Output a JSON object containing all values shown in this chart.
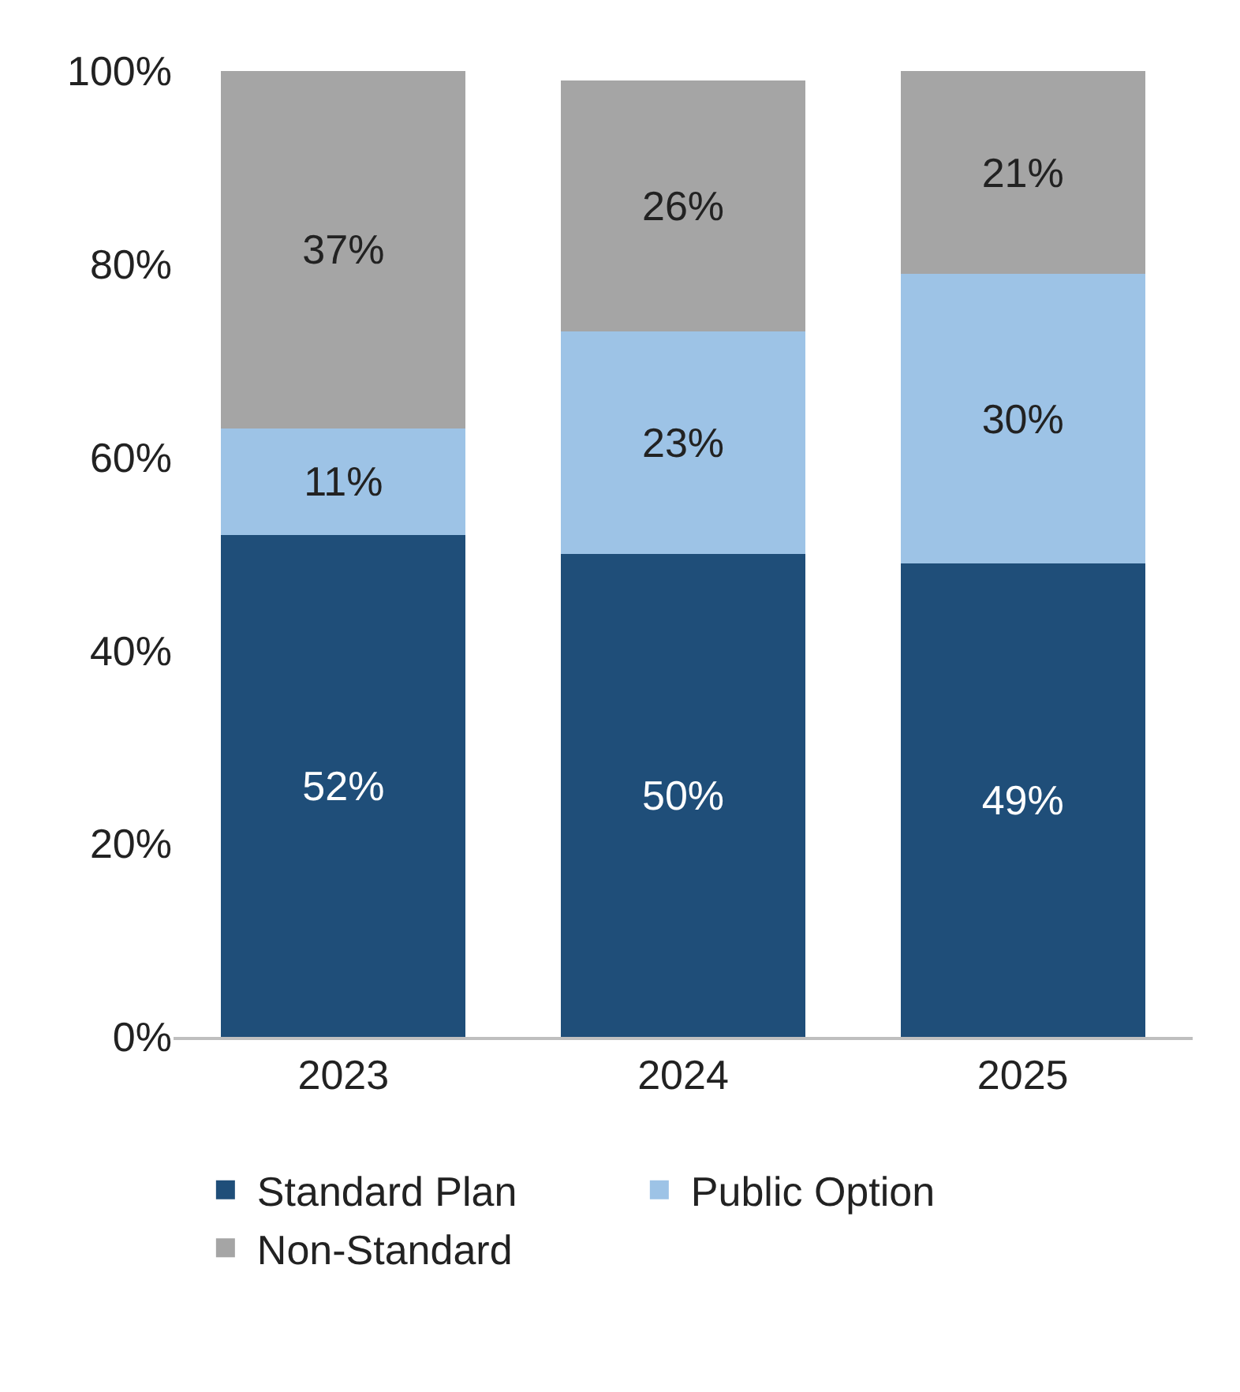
{
  "chart_data": {
    "type": "bar",
    "stacked": true,
    "categories": [
      "2023",
      "2024",
      "2025"
    ],
    "series": [
      {
        "name": "Standard Plan",
        "color": "#1f4e79",
        "values": [
          52,
          50,
          49
        ],
        "value_labels": [
          "52%",
          "50%",
          "49%"
        ]
      },
      {
        "name": "Public Option",
        "color": "#9dc3e6",
        "values": [
          11,
          23,
          30
        ],
        "value_labels": [
          "11%",
          "23%",
          "30%"
        ]
      },
      {
        "name": "Non-Standard",
        "color": "#a5a5a5",
        "values": [
          37,
          26,
          21
        ],
        "value_labels": [
          "37%",
          "26%",
          "21%"
        ]
      }
    ],
    "ylim": [
      0,
      100
    ],
    "yticks": [
      {
        "value": 0,
        "label": "0%"
      },
      {
        "value": 20,
        "label": "20%"
      },
      {
        "value": 40,
        "label": "40%"
      },
      {
        "value": 60,
        "label": "60%"
      },
      {
        "value": 80,
        "label": "80%"
      },
      {
        "value": 100,
        "label": "100%"
      }
    ],
    "grid": false,
    "legend": "bottom"
  }
}
